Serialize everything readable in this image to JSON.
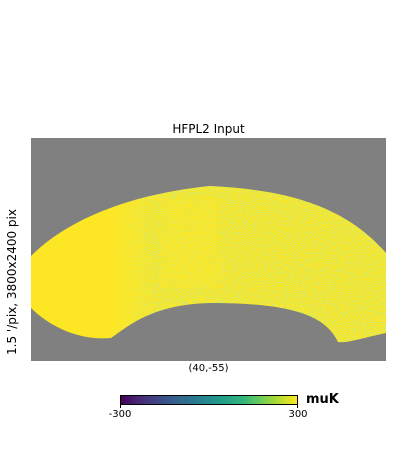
{
  "title": "HFPL2 Input",
  "resolution_label": "1.5 '/pix,   3800x2400 pix",
  "center_label": "(40,-55)",
  "colorbar": {
    "min_label": "-300",
    "max_label": "300",
    "unit": "muK",
    "colormap": "viridis"
  },
  "colors": {
    "background_mask": "#808080",
    "dominant_field": "#fde725",
    "secondary_field": "#6ece58"
  }
}
